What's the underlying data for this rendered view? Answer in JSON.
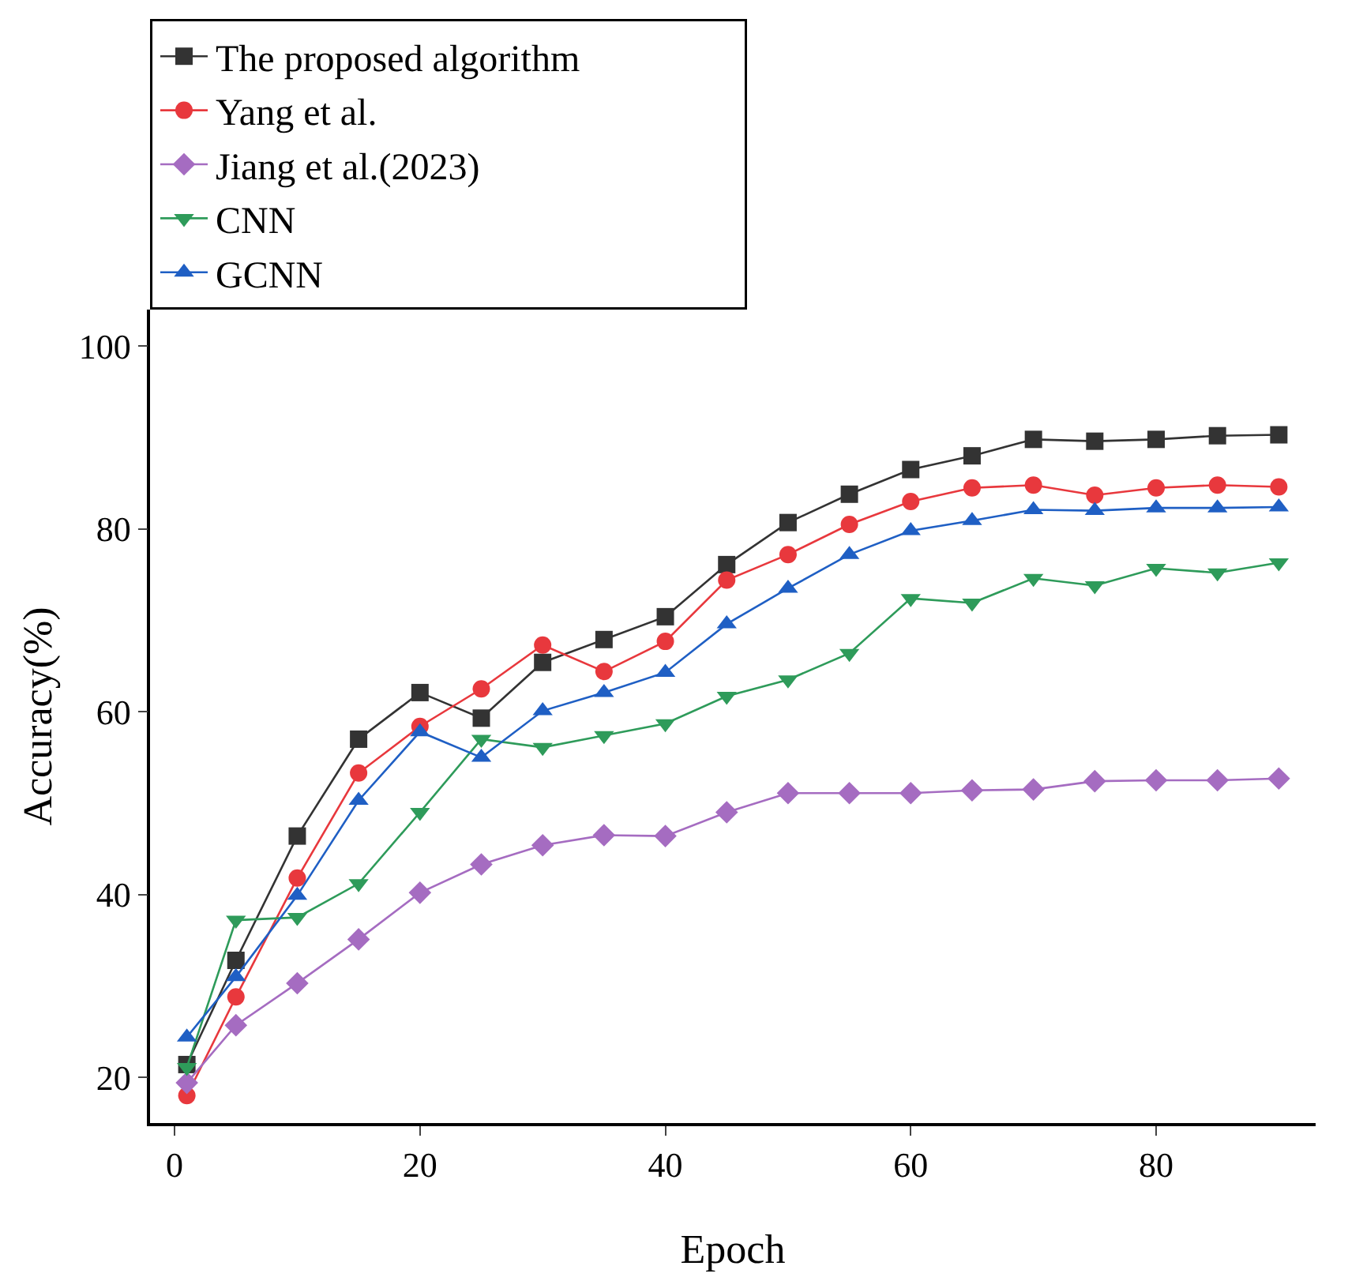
{
  "chart_data": {
    "type": "line",
    "xlabel": "Epoch",
    "ylabel": "Accuracy(%)",
    "x": [
      1,
      5,
      10,
      15,
      20,
      25,
      30,
      35,
      40,
      45,
      50,
      55,
      60,
      65,
      70,
      75,
      80,
      85,
      90
    ],
    "xlim": [
      -2,
      93
    ],
    "xticks": [
      0,
      20,
      40,
      60,
      80
    ],
    "ylim": [
      15,
      104
    ],
    "yticks": [
      20,
      40,
      60,
      80,
      100
    ],
    "grid": false,
    "legend": "top left",
    "line_style": "solid",
    "series": [
      {
        "name": "The proposed algorithm",
        "color": "#333333",
        "marker": "square",
        "values": [
          21.4,
          32.8,
          46.4,
          57.0,
          62.1,
          59.3,
          65.4,
          67.9,
          70.4,
          76.1,
          80.7,
          83.8,
          86.5,
          88.0,
          89.8,
          89.6,
          89.8,
          90.2,
          90.3
        ]
      },
      {
        "name": "Yang et al.",
        "color": "#e8383d",
        "marker": "circle",
        "values": [
          18.0,
          28.8,
          41.8,
          53.3,
          58.4,
          62.5,
          67.3,
          64.4,
          67.7,
          74.4,
          77.2,
          80.5,
          83.0,
          84.5,
          84.8,
          83.7,
          84.5,
          84.8,
          84.6
        ]
      },
      {
        "name": "Jiang et al.(2023)",
        "color": "#a56cc1",
        "marker": "diamond",
        "values": [
          19.4,
          25.7,
          30.3,
          35.1,
          40.2,
          43.3,
          45.4,
          46.5,
          46.4,
          49.0,
          51.1,
          51.1,
          51.1,
          51.4,
          51.5,
          52.4,
          52.5,
          52.5,
          52.7
        ]
      },
      {
        "name": "CNN",
        "color": "#2e9b5a",
        "marker": "triangle-down",
        "values": [
          21.1,
          37.2,
          37.5,
          41.2,
          49.0,
          57.0,
          56.1,
          57.4,
          58.7,
          61.7,
          63.5,
          66.4,
          72.4,
          71.9,
          74.6,
          73.8,
          75.7,
          75.2,
          76.3
        ]
      },
      {
        "name": "GCNN",
        "color": "#1f5fc4",
        "marker": "triangle",
        "values": [
          24.4,
          31.0,
          39.9,
          50.3,
          57.8,
          55.0,
          60.1,
          62.1,
          64.3,
          69.6,
          73.5,
          77.2,
          79.8,
          80.9,
          82.1,
          82.0,
          82.3,
          82.3,
          82.4
        ]
      }
    ]
  }
}
